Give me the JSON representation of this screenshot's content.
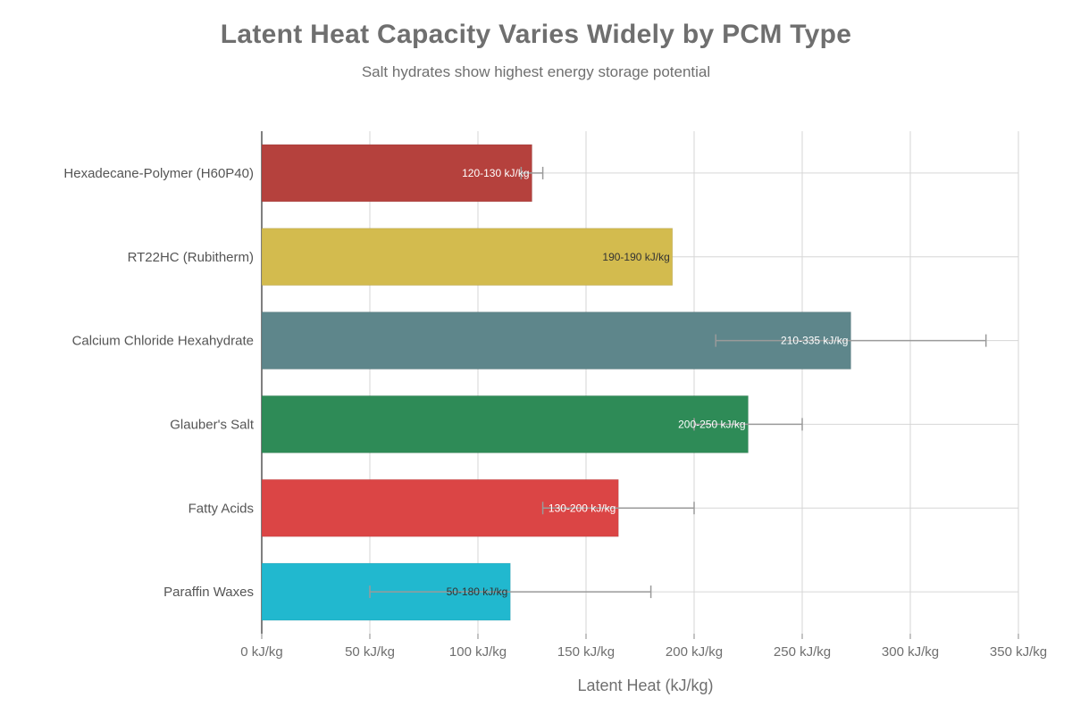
{
  "title": "Latent Heat Capacity Varies Widely by PCM Type",
  "subtitle": "Salt hydrates show highest energy storage potential",
  "chart_data": {
    "type": "bar",
    "orientation": "horizontal",
    "title": "Latent Heat Capacity Varies Widely by PCM Type",
    "subtitle": "Salt hydrates show highest energy storage potential",
    "xlabel": "Latent Heat (kJ/kg)",
    "ylabel": "",
    "xlim": [
      0,
      350
    ],
    "xticks": [
      0,
      50,
      100,
      150,
      200,
      250,
      300,
      350
    ],
    "tick_suffix": " kJ/kg",
    "grid": true,
    "categories": [
      "Hexadecane-Polymer (H60P40)",
      "RT22HC (Rubitherm)",
      "Calcium Chloride Hexahydrate",
      "Glauber's Salt",
      "Fatty Acids",
      "Paraffin Waxes"
    ],
    "values": [
      125,
      190,
      272.5,
      225,
      165,
      115
    ],
    "ranges": [
      [
        120,
        130
      ],
      [
        190,
        190
      ],
      [
        210,
        335
      ],
      [
        200,
        250
      ],
      [
        130,
        200
      ],
      [
        50,
        180
      ]
    ],
    "labels": [
      "120-130 kJ/kg",
      "190-190 kJ/kg",
      "210-335 kJ/kg",
      "200-250 kJ/kg",
      "130-200 kJ/kg",
      "50-180 kJ/kg"
    ],
    "colors": [
      "#b5413d",
      "#d3bb4e",
      "#5e868b",
      "#2e8b57",
      "#db4545",
      "#21b8cf"
    ],
    "label_colors": [
      "#ffffff",
      "#333333",
      "#ffffff",
      "#ffffff",
      "#ffffff",
      "#333333"
    ]
  }
}
